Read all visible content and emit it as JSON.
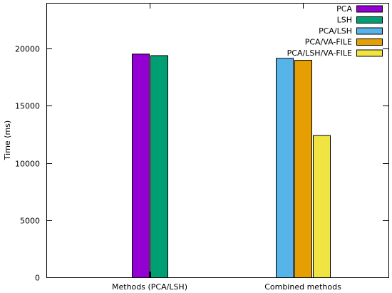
{
  "chart_data": {
    "type": "bar",
    "title": "",
    "xlabel": "",
    "ylabel": "Time (ms)",
    "ylim": [
      0,
      24000
    ],
    "yticks": [
      0,
      5000,
      10000,
      15000,
      20000
    ],
    "grid": false,
    "legend_position": "top-right",
    "categories": [
      "Methods (PCA/LSH)",
      "Combined methods"
    ],
    "series": [
      {
        "name": "PCA",
        "color": "#9400d3",
        "values": [
          19550,
          null
        ]
      },
      {
        "name": "LSH",
        "color": "#009e73",
        "values": [
          19420,
          null
        ]
      },
      {
        "name": "PCA/LSH",
        "color": "#56b4e9",
        "values": [
          null,
          19180
        ]
      },
      {
        "name": "PCA/VA-FILE",
        "color": "#e69f00",
        "values": [
          null,
          19010
        ]
      },
      {
        "name": "PCA/LSH/VA-FILE",
        "color": "#f0e442",
        "values": [
          null,
          12430
        ]
      }
    ]
  }
}
